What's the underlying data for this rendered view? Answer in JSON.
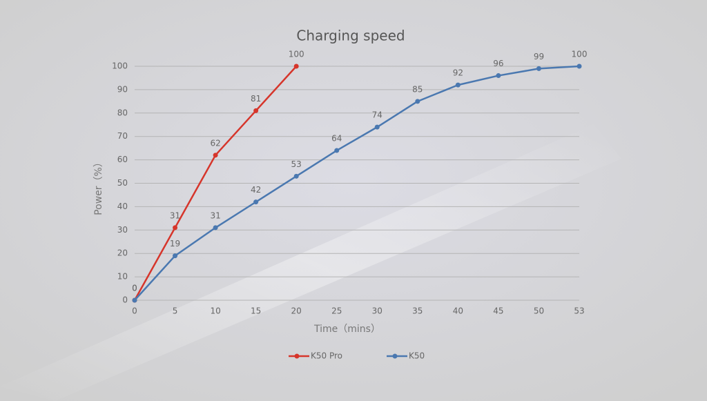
{
  "chart_data": {
    "type": "line",
    "title": "Charging speed",
    "x_label": "Time（mins）",
    "y_label": "Power（%）",
    "categories": [
      0,
      5,
      10,
      15,
      20,
      25,
      30,
      35,
      40,
      45,
      50,
      53
    ],
    "series": [
      {
        "name": "K50 Pro",
        "color": "#d6352b",
        "values": [
          0,
          31,
          62,
          81,
          100,
          null,
          null,
          null,
          null,
          null,
          null,
          null
        ]
      },
      {
        "name": "K50",
        "color": "#4a78b0",
        "values": [
          0,
          19,
          31,
          42,
          53,
          64,
          74,
          85,
          92,
          96,
          99,
          100
        ]
      }
    ],
    "ylim": [
      0,
      100
    ],
    "yticks": [
      0,
      10,
      20,
      30,
      40,
      50,
      60,
      70,
      80,
      90,
      100
    ],
    "grid": true,
    "data_labels": true,
    "legend": "bottom"
  }
}
